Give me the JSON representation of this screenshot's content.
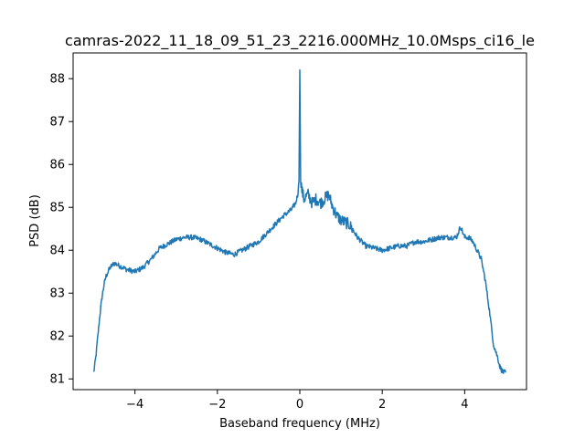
{
  "chart_data": {
    "type": "line",
    "title": "camras-2022_11_18_09_51_23_2216.000MHz_10.0Msps_ci16_le",
    "xlabel": "Baseband frequency (MHz)",
    "ylabel": "PSD (dB)",
    "xlim": [
      -5.5,
      5.5
    ],
    "ylim": [
      80.75,
      88.6
    ],
    "xticks": [
      -4,
      -2,
      0,
      2,
      4
    ],
    "xtick_labels": [
      "−4",
      "−2",
      "0",
      "2",
      "4"
    ],
    "yticks": [
      81,
      82,
      83,
      84,
      85,
      86,
      87,
      88
    ],
    "ytick_labels": [
      "81",
      "82",
      "83",
      "84",
      "85",
      "86",
      "87",
      "88"
    ],
    "grid": false,
    "colors": {
      "line": "#1f77b4"
    },
    "series": [
      {
        "x": [
          -5.0,
          -4.95,
          -4.9,
          -4.85,
          -4.8,
          -4.75,
          -4.7,
          -4.6,
          -4.5,
          -4.4,
          -4.3,
          -4.2,
          -4.0,
          -3.8,
          -3.6,
          -3.4,
          -3.2,
          -3.0,
          -2.8,
          -2.6,
          -2.4,
          -2.2,
          -2.0,
          -1.8,
          -1.6,
          -1.4,
          -1.2,
          -1.0,
          -0.8,
          -0.6,
          -0.4,
          -0.2,
          -0.1,
          -0.05,
          -0.02,
          0.0,
          0.02,
          0.05,
          0.1,
          0.2,
          0.3,
          0.4,
          0.5,
          0.6,
          0.7,
          0.8,
          0.9,
          1.0,
          1.2,
          1.4,
          1.6,
          1.8,
          2.0,
          2.2,
          2.4,
          2.6,
          2.8,
          3.0,
          3.2,
          3.4,
          3.6,
          3.8,
          3.9,
          4.0,
          4.1,
          4.2,
          4.3,
          4.4,
          4.5,
          4.6,
          4.7,
          4.8,
          4.85,
          4.9,
          4.95,
          5.0
        ],
        "y": [
          81.15,
          81.5,
          82.0,
          82.5,
          82.9,
          83.2,
          83.4,
          83.6,
          83.7,
          83.65,
          83.6,
          83.55,
          83.5,
          83.6,
          83.8,
          84.05,
          84.15,
          84.25,
          84.3,
          84.3,
          84.25,
          84.15,
          84.05,
          83.95,
          83.9,
          84.0,
          84.1,
          84.2,
          84.4,
          84.6,
          84.8,
          84.95,
          85.1,
          85.3,
          85.6,
          88.2,
          85.7,
          85.4,
          85.2,
          85.3,
          85.1,
          85.2,
          85.1,
          85.2,
          85.3,
          85.0,
          84.8,
          84.7,
          84.6,
          84.3,
          84.1,
          84.05,
          84.0,
          84.05,
          84.1,
          84.1,
          84.2,
          84.2,
          84.25,
          84.3,
          84.3,
          84.3,
          84.55,
          84.3,
          84.3,
          84.2,
          84.0,
          83.8,
          83.3,
          82.6,
          81.8,
          81.5,
          81.3,
          81.2,
          81.15,
          81.15
        ]
      }
    ]
  }
}
